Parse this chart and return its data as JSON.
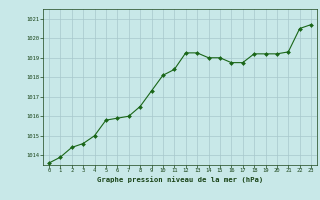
{
  "x": [
    0,
    1,
    2,
    3,
    4,
    5,
    6,
    7,
    8,
    9,
    10,
    11,
    12,
    13,
    14,
    15,
    16,
    17,
    18,
    19,
    20,
    21,
    22,
    23
  ],
  "y": [
    1013.6,
    1013.9,
    1014.4,
    1014.6,
    1015.0,
    1015.8,
    1015.9,
    1016.0,
    1016.5,
    1017.3,
    1018.1,
    1018.4,
    1019.25,
    1019.25,
    1019.0,
    1019.0,
    1018.75,
    1018.75,
    1019.2,
    1019.2,
    1019.2,
    1019.3,
    1020.5,
    1020.7
  ],
  "ylim": [
    1013.5,
    1021.5
  ],
  "yticks": [
    1014,
    1015,
    1016,
    1017,
    1018,
    1019,
    1020,
    1021
  ],
  "xticks": [
    0,
    1,
    2,
    3,
    4,
    5,
    6,
    7,
    8,
    9,
    10,
    11,
    12,
    13,
    14,
    15,
    16,
    17,
    18,
    19,
    20,
    21,
    22,
    23
  ],
  "xlabel": "Graphe pression niveau de la mer (hPa)",
  "line_color": "#1a6618",
  "marker_color": "#1a6618",
  "bg_color": "#c8e8e8",
  "grid_color": "#a8c8cc",
  "tick_color": "#1a4418",
  "xlabel_color": "#1a4418"
}
